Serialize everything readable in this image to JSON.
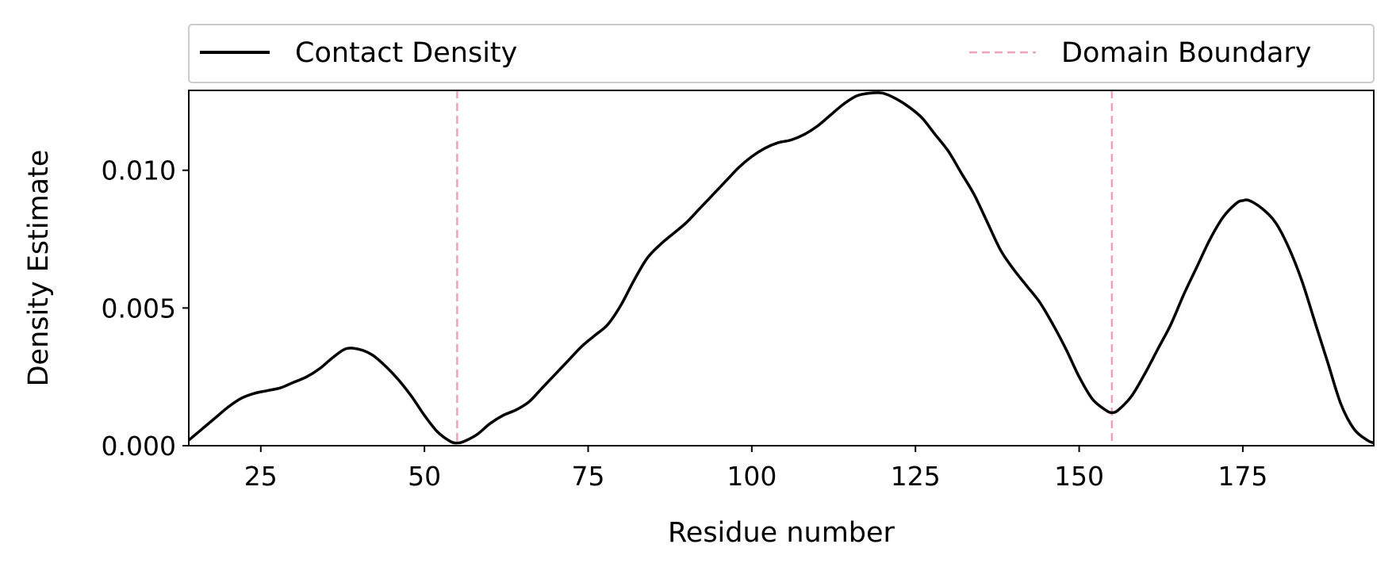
{
  "chart_data": {
    "type": "line",
    "xlabel": "Residue number",
    "ylabel": "Density Estimate",
    "xlim": [
      14,
      195
    ],
    "ylim": [
      0,
      0.0129
    ],
    "xticks": [
      25,
      50,
      75,
      100,
      125,
      150,
      175
    ],
    "xtick_labels": [
      "25",
      "50",
      "75",
      "100",
      "125",
      "150",
      "175"
    ],
    "yticks": [
      0,
      0.005,
      0.01
    ],
    "ytick_labels": [
      "0.000",
      "0.005",
      "0.010"
    ],
    "legend": {
      "placement": "top, above plot, full width, 2 columns",
      "entries": [
        {
          "label": "Contact Density",
          "style": "solid",
          "color": "#000000"
        },
        {
          "label": "Domain Boundary",
          "style": "dashed",
          "color": "#f0a3b5"
        }
      ]
    },
    "series": [
      {
        "name": "Contact Density",
        "color": "#000000",
        "x": [
          14,
          16,
          18,
          20,
          22,
          24,
          26,
          28,
          30,
          32,
          34,
          36,
          38,
          40,
          42,
          44,
          46,
          48,
          50,
          52,
          54,
          55,
          56,
          58,
          60,
          62,
          64,
          66,
          68,
          70,
          72,
          74,
          76,
          78,
          80,
          82,
          84,
          86,
          88,
          90,
          92,
          94,
          96,
          98,
          100,
          102,
          104,
          106,
          108,
          110,
          112,
          114,
          116,
          118,
          120,
          122,
          124,
          126,
          128,
          130,
          132,
          134,
          136,
          138,
          140,
          142,
          144,
          146,
          148,
          150,
          152,
          154,
          155,
          156,
          158,
          160,
          162,
          164,
          166,
          168,
          170,
          172,
          174,
          175,
          176,
          178,
          180,
          182,
          184,
          186,
          188,
          190,
          192,
          194,
          195
        ],
        "y": [
          0.0002,
          0.0006,
          0.001,
          0.0014,
          0.00172,
          0.0019,
          0.002,
          0.0021,
          0.0023,
          0.0025,
          0.0028,
          0.0032,
          0.00352,
          0.0035,
          0.0033,
          0.0029,
          0.0024,
          0.0018,
          0.0011,
          0.0005,
          0.00015,
          0.0001,
          0.00015,
          0.0004,
          0.0008,
          0.0011,
          0.0013,
          0.0016,
          0.0021,
          0.0026,
          0.0031,
          0.0036,
          0.004,
          0.0044,
          0.0051,
          0.006,
          0.0068,
          0.0073,
          0.0077,
          0.0081,
          0.0086,
          0.0091,
          0.0096,
          0.0101,
          0.0105,
          0.0108,
          0.011,
          0.0111,
          0.0113,
          0.0116,
          0.012,
          0.0124,
          0.0127,
          0.0128,
          0.0128,
          0.0126,
          0.0123,
          0.0119,
          0.0113,
          0.0107,
          0.0099,
          0.0091,
          0.0081,
          0.0071,
          0.0064,
          0.0058,
          0.0052,
          0.0044,
          0.0035,
          0.0025,
          0.0017,
          0.0013,
          0.0012,
          0.0013,
          0.0018,
          0.0026,
          0.0035,
          0.0044,
          0.0055,
          0.0065,
          0.0075,
          0.0083,
          0.0088,
          0.0089,
          0.0089,
          0.0086,
          0.0081,
          0.0072,
          0.006,
          0.0045,
          0.003,
          0.0015,
          0.0006,
          0.0002,
          0.0001
        ]
      },
      {
        "name": "Domain Boundary",
        "color": "#f0a3b5",
        "style": "dashed",
        "vlines": [
          55,
          155
        ]
      }
    ]
  }
}
